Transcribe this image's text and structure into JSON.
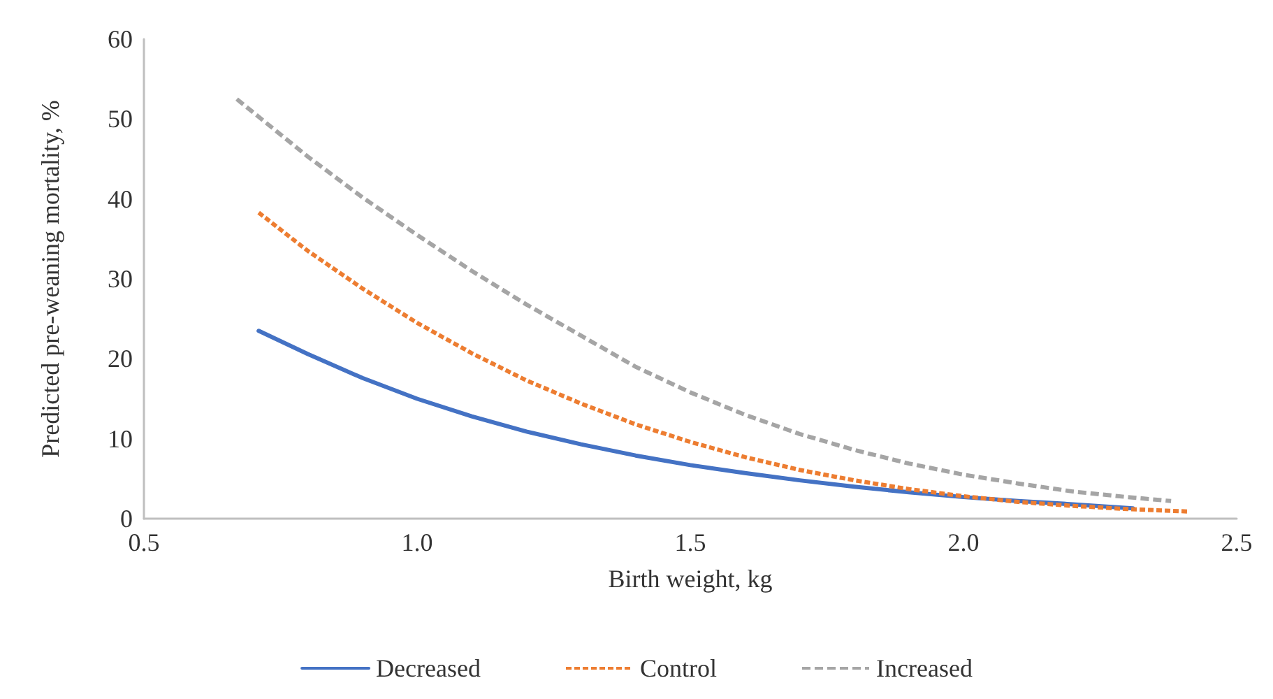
{
  "chart_data": {
    "type": "line",
    "xlabel": "Birth weight, kg",
    "ylabel": "Predicted pre-weaning mortality, %",
    "xlim": [
      0.5,
      2.5
    ],
    "xticks": [
      {
        "value": 0.5,
        "label": "0.5"
      },
      {
        "value": 1,
        "label": "1.0"
      },
      {
        "value": 1.5,
        "label": "1.5"
      },
      {
        "value": 2,
        "label": "2.0"
      },
      {
        "value": 2.5,
        "label": "2.5"
      }
    ],
    "ylim": [
      0,
      60
    ],
    "yticks": [
      0,
      10,
      20,
      30,
      40,
      50,
      60
    ],
    "grid": false,
    "legend": "bottom",
    "marker": "none",
    "series": [
      {
        "name": "Decreased",
        "color": "#4472c4",
        "line_style": "solid",
        "x": [
          0.71,
          0.8,
          0.9,
          1.0,
          1.1,
          1.2,
          1.3,
          1.4,
          1.5,
          1.6,
          1.7,
          1.8,
          1.9,
          2.0,
          2.1,
          2.2,
          2.31
        ],
        "values": [
          23.5,
          20.6,
          17.6,
          15.0,
          12.8,
          10.9,
          9.3,
          7.9,
          6.7,
          5.7,
          4.8,
          4.0,
          3.3,
          2.7,
          2.2,
          1.8,
          1.3
        ]
      },
      {
        "name": "Control",
        "color": "#ed7d31",
        "line_style": "dotted",
        "x": [
          0.71,
          0.8,
          0.9,
          1.0,
          1.1,
          1.2,
          1.3,
          1.4,
          1.5,
          1.6,
          1.7,
          1.8,
          1.9,
          2.0,
          2.1,
          2.2,
          2.3,
          2.41
        ],
        "values": [
          38.3,
          33.5,
          28.8,
          24.5,
          20.7,
          17.3,
          14.4,
          11.8,
          9.6,
          7.7,
          6.1,
          4.8,
          3.7,
          2.8,
          2.1,
          1.6,
          1.2,
          0.9
        ]
      },
      {
        "name": "Increased",
        "color": "#a5a5a5",
        "line_style": "dashed",
        "x": [
          0.67,
          0.8,
          0.9,
          1.0,
          1.1,
          1.2,
          1.3,
          1.4,
          1.5,
          1.6,
          1.7,
          1.8,
          1.9,
          2.0,
          2.1,
          2.2,
          2.3,
          2.38
        ],
        "values": [
          52.5,
          45.3,
          40.2,
          35.5,
          31.0,
          26.8,
          22.9,
          19.0,
          15.8,
          13.0,
          10.6,
          8.6,
          6.9,
          5.5,
          4.4,
          3.4,
          2.7,
          2.2
        ]
      }
    ]
  }
}
